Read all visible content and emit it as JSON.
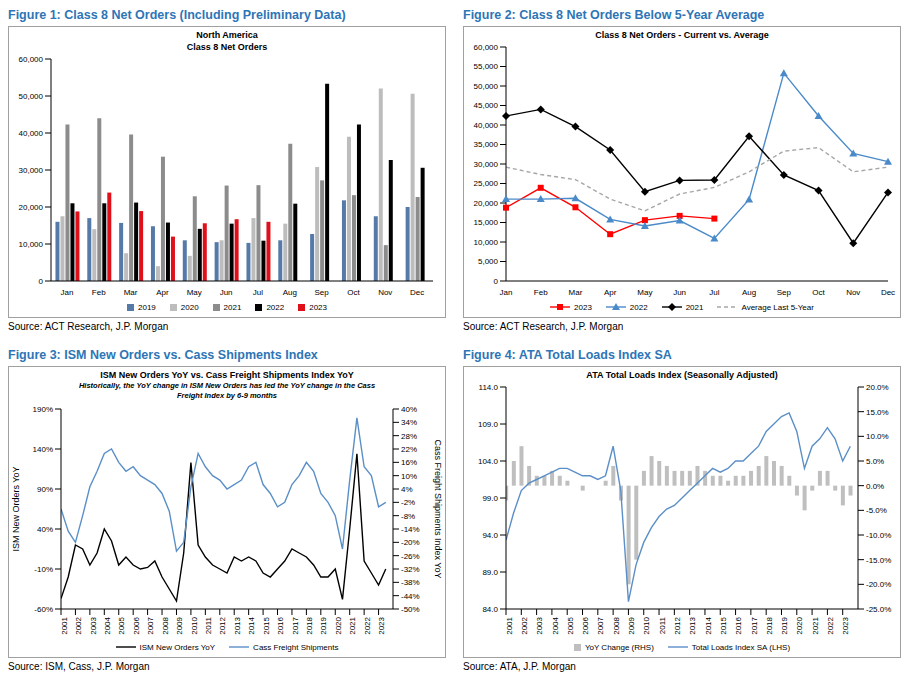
{
  "chart_data": [
    {
      "type": "bar",
      "figure_title": "Figure 1: Class 8 Net Orders (Including Preliminary Data)",
      "title": "North America\nClass 8 Net Orders",
      "source": "Source: ACT Research, J.P. Morgan",
      "categories": [
        "Jan",
        "Feb",
        "Mar",
        "Apr",
        "May",
        "Jun",
        "Jul",
        "Aug",
        "Sep",
        "Oct",
        "Nov",
        "Dec"
      ],
      "series": [
        {
          "name": "2019",
          "color": "#557AA8",
          "values": [
            16000,
            17000,
            15700,
            14800,
            11000,
            10500,
            10300,
            11000,
            12700,
            21800,
            17500,
            20000
          ]
        },
        {
          "name": "2020",
          "color": "#BDBDBD",
          "values": [
            17500,
            14000,
            7500,
            4000,
            6800,
            11000,
            17000,
            15500,
            30800,
            39000,
            52000,
            50600
          ]
        },
        {
          "name": "2021",
          "color": "#8C8C8C",
          "values": [
            42300,
            44000,
            39600,
            33600,
            22900,
            25800,
            25900,
            37100,
            27200,
            23200,
            9700,
            22700
          ]
        },
        {
          "name": "2022",
          "color": "#000000",
          "values": [
            21000,
            21000,
            21200,
            15800,
            14100,
            15500,
            10900,
            20900,
            53300,
            42300,
            32700,
            30600
          ]
        },
        {
          "name": "2023",
          "color": "#E0101A",
          "values": [
            18800,
            23900,
            18900,
            12000,
            15600,
            16700,
            16000,
            null,
            null,
            null,
            null,
            null
          ]
        }
      ],
      "ylim": [
        0,
        60000
      ],
      "yticks": [
        0,
        {
          "value": 10000,
          "label": "10,000"
        },
        {
          "value": 20000,
          "label": "20,000"
        },
        {
          "value": 30000,
          "label": "30,000"
        },
        {
          "value": 40000,
          "label": "40,000"
        },
        {
          "value": 50000,
          "label": "50,000"
        },
        {
          "value": 60000,
          "label": "60,000"
        }
      ],
      "grid": false,
      "legend": "bottom"
    },
    {
      "type": "line",
      "figure_title": "Figure 2: Class 8 Net Orders Below 5-Year Average",
      "title": "Class 8 Net Orders - Current vs. Average",
      "source": "Source: ACT Research, J.P. Morgan",
      "categories": [
        "Jan",
        "Feb",
        "Mar",
        "Apr",
        "May",
        "Jun",
        "Jul",
        "Aug",
        "Sep",
        "Oct",
        "Nov",
        "Dec"
      ],
      "series": [
        {
          "name": "2023",
          "color": "#FF0000",
          "marker": "square",
          "values": [
            18800,
            23900,
            18900,
            12000,
            15600,
            16700,
            16000,
            null,
            null,
            null,
            null,
            null
          ]
        },
        {
          "name": "2022",
          "color": "#4A8AC9",
          "marker": "triangle",
          "values": [
            21000,
            21000,
            21200,
            15800,
            14100,
            15500,
            10900,
            20900,
            53300,
            42300,
            32700,
            30600
          ]
        },
        {
          "name": "2021",
          "color": "#000000",
          "marker": "diamond",
          "values": [
            42300,
            44000,
            39600,
            33600,
            22900,
            25800,
            25900,
            37100,
            27200,
            23200,
            9700,
            22700
          ]
        },
        {
          "name": "Average Last 5-Year",
          "color": "#A6A6A6",
          "line_style": "dashed",
          "values": [
            29200,
            27300,
            26000,
            21000,
            18000,
            22300,
            24000,
            28000,
            33300,
            34200,
            28000,
            29200
          ]
        }
      ],
      "ylim": [
        0,
        60000
      ],
      "yticks": [
        0,
        {
          "value": 5000,
          "label": "5,000"
        },
        {
          "value": 10000,
          "label": "10,000"
        },
        {
          "value": 15000,
          "label": "15,000"
        },
        {
          "value": 20000,
          "label": "20,000"
        },
        {
          "value": 25000,
          "label": "25,000"
        },
        {
          "value": 30000,
          "label": "30,000"
        },
        {
          "value": 35000,
          "label": "35,000"
        },
        {
          "value": 40000,
          "label": "40,000"
        },
        {
          "value": 45000,
          "label": "45,000"
        },
        {
          "value": 50000,
          "label": "50,000"
        },
        {
          "value": 55000,
          "label": "55,000"
        },
        {
          "value": 60000,
          "label": "60,000"
        }
      ],
      "grid": false,
      "legend": "bottom"
    },
    {
      "type": "line",
      "figure_title": "Figure 3: ISM New Orders vs. Cass Shipments Index",
      "title": "ISM New Orders YoY vs. Cass Freight Shipments Index YoY",
      "source": "Source: ISM, Cass, J.P. Morgan",
      "note": "Historically, the YoY change in ISM New Orders has led the YoY change in the Cass Freight Index by 6-9 months",
      "y_label": "ISM New Orders YoY",
      "y2_label": "Cass Freight Shipments Index YoY",
      "x": [
        2001,
        2001.5,
        2002,
        2002.5,
        2003,
        2003.5,
        2004,
        2004.5,
        2005,
        2005.5,
        2006,
        2006.5,
        2007,
        2007.5,
        2008,
        2008.5,
        2009,
        2009.5,
        2010,
        2010.5,
        2011,
        2011.5,
        2012,
        2012.5,
        2013,
        2013.5,
        2014,
        2014.5,
        2015,
        2015.5,
        2016,
        2016.5,
        2017,
        2017.5,
        2018,
        2018.5,
        2019,
        2019.5,
        2020,
        2020.5,
        2021,
        2021.5,
        2022,
        2022.5,
        2023,
        2023.5
      ],
      "series": [
        {
          "name": "ISM New Orders YoY",
          "color": "#000000",
          "axis": "y",
          "values": [
            -47,
            -20,
            20,
            15,
            -5,
            10,
            40,
            25,
            -5,
            5,
            -5,
            -10,
            -8,
            0,
            -20,
            -35,
            -50,
            10,
            123,
            20,
            5,
            -5,
            -10,
            -15,
            5,
            0,
            5,
            0,
            -15,
            -20,
            -10,
            0,
            15,
            10,
            5,
            -5,
            -20,
            -20,
            -10,
            -48,
            40,
            134,
            0,
            -15,
            -30,
            -10
          ]
        },
        {
          "name": "Cass Freight Shipments",
          "color": "#5B8FC7",
          "axis": "y2",
          "values": [
            -5,
            -15,
            -20,
            -8,
            5,
            12,
            20,
            22,
            16,
            12,
            14,
            10,
            8,
            6,
            2,
            -6,
            -24,
            -20,
            5,
            20,
            14,
            10,
            8,
            4,
            6,
            8,
            14,
            16,
            6,
            2,
            -4,
            -2,
            6,
            10,
            16,
            12,
            2,
            -2,
            -8,
            -23,
            8,
            36,
            14,
            10,
            -4,
            -2
          ]
        }
      ],
      "xlim": [
        2001,
        2024
      ],
      "xticks": [
        2001,
        2002,
        2003,
        2004,
        2005,
        2006,
        2007,
        2008,
        2009,
        2010,
        2011,
        2012,
        2013,
        2014,
        2015,
        2016,
        2017,
        2018,
        2019,
        2020,
        2021,
        2022,
        2023
      ],
      "ylim": [
        -60,
        190
      ],
      "yticks": [
        {
          "value": -60,
          "label": "-60%"
        },
        {
          "value": -10,
          "label": "-10%"
        },
        {
          "value": 40,
          "label": "40%"
        },
        {
          "value": 90,
          "label": "90%"
        },
        {
          "value": 140,
          "label": "140%"
        },
        {
          "value": 190,
          "label": "190%"
        }
      ],
      "y2lim": [
        -50,
        40
      ],
      "y2ticks": [
        {
          "value": -50,
          "label": "-50%"
        },
        {
          "value": -44,
          "label": "-44%"
        },
        {
          "value": -38,
          "label": "-38%"
        },
        {
          "value": -32,
          "label": "-32%"
        },
        {
          "value": -26,
          "label": "-26%"
        },
        {
          "value": -20,
          "label": "-20%"
        },
        {
          "value": -14,
          "label": "-14%"
        },
        {
          "value": -8,
          "label": "-8%"
        },
        {
          "value": -2,
          "label": "-2%"
        },
        {
          "value": 4,
          "label": "4%"
        },
        {
          "value": 10,
          "label": "10%"
        },
        {
          "value": 16,
          "label": "16%"
        },
        {
          "value": 22,
          "label": "22%"
        },
        {
          "value": 28,
          "label": "28%"
        },
        {
          "value": 34,
          "label": "34%"
        },
        {
          "value": 40,
          "label": "40%"
        }
      ],
      "grid": false,
      "legend": "bottom"
    },
    {
      "type": "combo",
      "figure_title": "Figure 4: ATA Total Loads Index SA",
      "title": "ATA Total Loads Index (Seasonally Adjusted)",
      "source": "Source: ATA, J.P. Morgan",
      "x": [
        2001,
        2001.5,
        2002,
        2002.5,
        2003,
        2003.5,
        2004,
        2004.5,
        2005,
        2005.5,
        2006,
        2006.5,
        2007,
        2007.5,
        2008,
        2008.5,
        2009,
        2009.5,
        2010,
        2010.5,
        2011,
        2011.5,
        2012,
        2012.5,
        2013,
        2013.5,
        2014,
        2014.5,
        2015,
        2015.5,
        2016,
        2016.5,
        2017,
        2017.5,
        2018,
        2018.5,
        2019,
        2019.5,
        2020,
        2020.5,
        2021,
        2021.5,
        2022,
        2022.5,
        2023,
        2023.5
      ],
      "series": [
        {
          "name": "YoY Change (RHS)",
          "type": "bar",
          "color": "#BFBFBF",
          "axis": "y2",
          "values": [
            -3,
            5,
            8,
            4,
            2,
            2,
            3,
            2,
            1,
            0,
            -1,
            0,
            0,
            1,
            4,
            -3,
            -20,
            -15,
            3,
            6,
            5,
            4,
            3,
            3,
            3,
            4,
            3,
            2,
            2,
            1,
            2,
            2,
            3,
            4,
            6,
            5,
            4,
            2,
            -2,
            -5,
            -1,
            3,
            3,
            -1,
            -4,
            -2
          ]
        },
        {
          "name": "Total Loads Index SA (LHS)",
          "type": "line",
          "color": "#5B8FC7",
          "axis": "y",
          "values": [
            93.3,
            97,
            100,
            101,
            101.5,
            102,
            102.5,
            103,
            103,
            102.5,
            102,
            102,
            101.5,
            102,
            106,
            100,
            85,
            90,
            93,
            95,
            96.5,
            97.5,
            98,
            99,
            100,
            101,
            102,
            103,
            102.5,
            103,
            104,
            104,
            105,
            106,
            108,
            109,
            110,
            110.5,
            108,
            103,
            106,
            107,
            108.5,
            107,
            104,
            106
          ]
        }
      ],
      "xlim": [
        2001,
        2024
      ],
      "xticks": [
        2001,
        2002,
        2003,
        2004,
        2005,
        2006,
        2007,
        2008,
        2009,
        2010,
        2011,
        2012,
        2013,
        2014,
        2015,
        2016,
        2017,
        2018,
        2019,
        2020,
        2021,
        2022,
        2023
      ],
      "ylim": [
        84,
        114
      ],
      "yticks": [
        {
          "value": 84,
          "label": "84.0"
        },
        {
          "value": 89,
          "label": "89.0"
        },
        {
          "value": 94,
          "label": "94.0"
        },
        {
          "value": 99,
          "label": "99.0"
        },
        {
          "value": 104,
          "label": "104.0"
        },
        {
          "value": 109,
          "label": "109.0"
        },
        {
          "value": 114,
          "label": "114.0"
        }
      ],
      "y2lim": [
        -25,
        20
      ],
      "y2ticks": [
        {
          "value": -25,
          "label": "-25.0%"
        },
        {
          "value": -20,
          "label": "-20.0%"
        },
        {
          "value": -15,
          "label": "-15.0%"
        },
        {
          "value": -10,
          "label": "-10.0%"
        },
        {
          "value": -5,
          "label": "-5.0%"
        },
        {
          "value": 0,
          "label": "0.0%"
        },
        {
          "value": 5,
          "label": "5.0%"
        },
        {
          "value": 10,
          "label": "10.0%"
        },
        {
          "value": 15,
          "label": "15.0%"
        },
        {
          "value": 20,
          "label": "20.0%"
        }
      ],
      "grid": false,
      "legend": "bottom"
    }
  ]
}
